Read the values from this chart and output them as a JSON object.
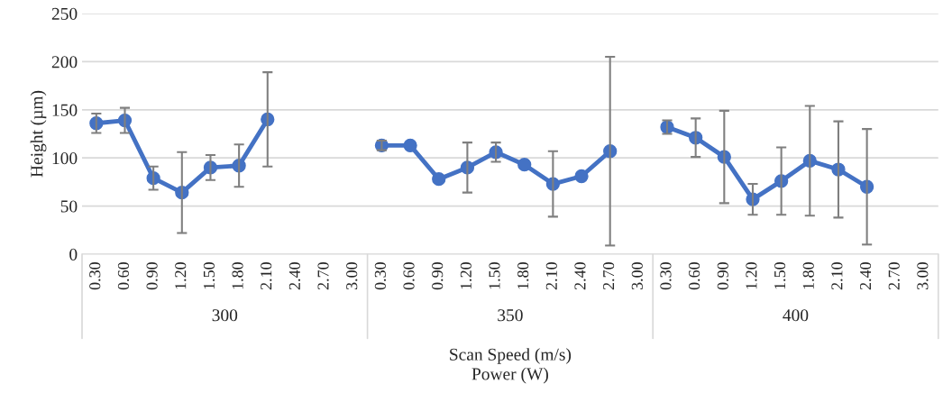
{
  "chart_data": {
    "type": "line",
    "categories": [
      "0.30",
      "0.60",
      "0.90",
      "1.20",
      "1.50",
      "1.80",
      "2.10",
      "2.40",
      "2.70",
      "3.00",
      "0.30",
      "0.60",
      "0.90",
      "1.20",
      "1.50",
      "1.80",
      "2.10",
      "2.40",
      "2.70",
      "3.00",
      "0.30",
      "0.60",
      "0.90",
      "1.20",
      "1.50",
      "1.80",
      "2.10",
      "2.40",
      "2.70",
      "3.00"
    ],
    "series": [
      {
        "color": "#4472c4",
        "values": [
          136,
          139,
          79,
          64,
          90,
          92,
          140,
          null,
          null,
          null,
          113,
          113,
          78,
          90,
          106,
          93,
          73,
          81,
          107,
          null,
          132,
          121,
          101,
          57,
          76,
          97,
          88,
          70,
          null,
          null
        ],
        "errors": [
          10,
          13,
          12,
          42,
          13,
          22,
          49,
          null,
          null,
          null,
          5,
          null,
          null,
          26,
          10,
          null,
          34,
          null,
          98,
          null,
          7,
          20,
          48,
          16,
          35,
          57,
          50,
          60,
          null,
          null
        ]
      }
    ],
    "annotations": [
      "300",
      "350",
      "400"
    ],
    "xlabel": "Scan Speed (m/s)\nPower (W)",
    "ylabel": "Height (µm)",
    "ylim": [
      0,
      250
    ],
    "yticks": [
      0,
      50,
      100,
      150,
      200,
      250
    ],
    "grid": "y",
    "marker": "circle",
    "line_style": "solid"
  }
}
